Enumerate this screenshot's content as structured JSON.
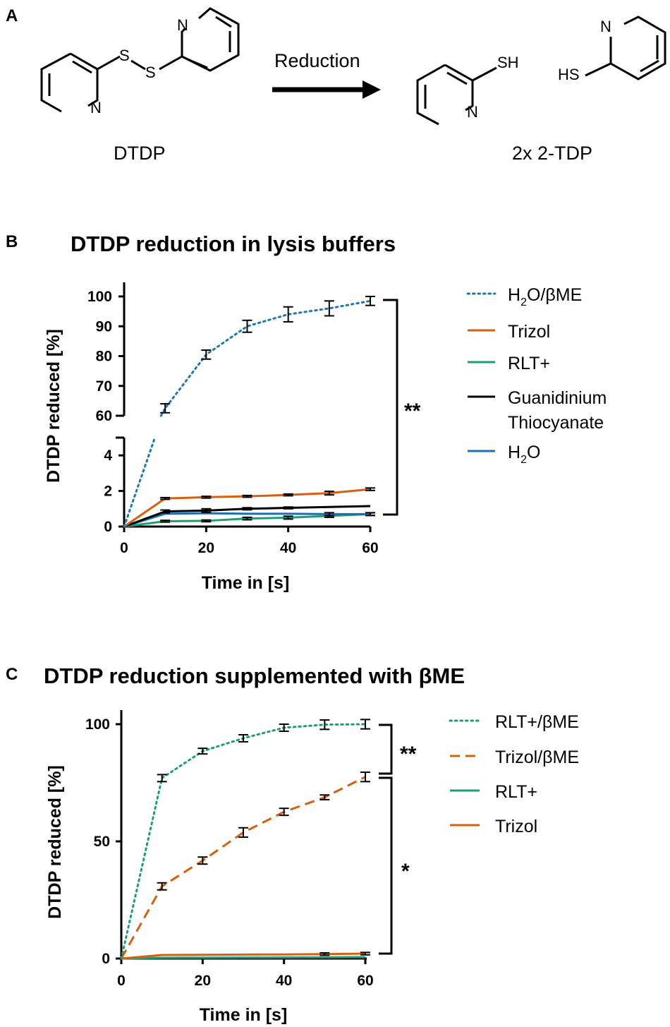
{
  "panel_a": {
    "letter": "A",
    "reactant": "DTDP",
    "arrow_label": "Reduction",
    "product": "2x 2-TDP",
    "atoms": {
      "s": "S",
      "n": "N",
      "sh": "SH",
      "hs": "HS"
    }
  },
  "chart_data": [
    {
      "panel": "B",
      "type": "line",
      "title": "DTDP reduction in lysis buffers",
      "xlabel": "Time in [s]",
      "ylabel": "DTDP reduced [%]",
      "xlim": [
        0,
        60
      ],
      "ylim_lower": [
        0,
        5
      ],
      "ylim_upper": [
        60,
        100
      ],
      "x_ticks": [
        "0",
        "20",
        "40",
        "60"
      ],
      "y_ticks_lower": [
        "0",
        "2",
        "4"
      ],
      "y_ticks_upper": [
        "60",
        "70",
        "80",
        "90",
        "100"
      ],
      "x": [
        0,
        10,
        20,
        30,
        40,
        50,
        60
      ],
      "series": [
        {
          "name": "H2O/βME",
          "color": "#1f77b4",
          "dash": "dotted",
          "values": [
            0,
            62.5,
            80.5,
            90,
            94,
            96,
            98.5
          ],
          "errors": [
            0,
            1.5,
            1.5,
            2,
            2.5,
            2.5,
            1.5
          ]
        },
        {
          "name": "Trizol",
          "color": "#d95f0e",
          "dash": "solid",
          "values": [
            0,
            1.58,
            1.65,
            1.7,
            1.78,
            1.88,
            2.1
          ],
          "errors": [
            0,
            0.05,
            0.05,
            0.05,
            0.05,
            0.1,
            0.07
          ]
        },
        {
          "name": "RLT+",
          "color": "#1b9e77",
          "dash": "solid",
          "values": [
            0,
            0.3,
            0.32,
            0.45,
            0.5,
            0.6,
            0.7
          ],
          "errors": [
            0,
            0.05,
            0.05,
            0.07,
            0.08,
            0.08,
            0.07
          ]
        },
        {
          "name": "Guanidinium Thiocyanate",
          "color": "#000000",
          "dash": "solid",
          "values": [
            0,
            0.85,
            0.9,
            1.0,
            1.05,
            1.1,
            1.15
          ],
          "errors": [
            0,
            0.08,
            0.1,
            0.06,
            0.05,
            0,
            0
          ]
        },
        {
          "name": "H2O",
          "color": "#1f6fb0",
          "dash": "solid",
          "values": [
            0,
            0.72,
            0.75,
            0.72,
            0.72,
            0.7,
            0.7
          ],
          "errors": [
            0,
            0,
            0,
            0,
            0,
            0.08,
            0.08
          ]
        }
      ],
      "legend": [
        {
          "main": "H",
          "sub": "2",
          "rest": "O/βME"
        },
        {
          "main": "Trizol"
        },
        {
          "main": "RLT+"
        },
        {
          "main": "Guanidinium",
          "line2": "Thiocyanate"
        },
        {
          "main": "H",
          "sub": "2",
          "rest": "O"
        }
      ],
      "significance": [
        {
          "label": "**"
        }
      ]
    },
    {
      "panel": "C",
      "type": "line",
      "title": "DTDP reduction supplemented with βME",
      "xlabel": "Time in [s]",
      "ylabel": "DTDP reduced [%]",
      "xlim": [
        0,
        60
      ],
      "ylim": [
        0,
        100
      ],
      "x_ticks": [
        "0",
        "20",
        "40",
        "60"
      ],
      "y_ticks": [
        "0",
        "50",
        "100"
      ],
      "x": [
        0,
        10,
        20,
        30,
        40,
        50,
        60
      ],
      "series": [
        {
          "name": "RLT+/βME",
          "color": "#1b9e77",
          "dash": "dotted",
          "values": [
            0,
            77,
            88.5,
            94,
            98.5,
            99.8,
            100
          ],
          "errors": [
            0,
            1.5,
            1.2,
            1.5,
            1.5,
            2,
            2
          ]
        },
        {
          "name": "Trizol/βME",
          "color": "#d95f0e",
          "dash": "dashed",
          "values": [
            0,
            30.8,
            41.8,
            53.8,
            62.6,
            68.8,
            77.5
          ],
          "errors": [
            0,
            1.5,
            1.5,
            2,
            1.5,
            1,
            2
          ]
        },
        {
          "name": "RLT+",
          "color": "#1b9e77",
          "dash": "solid",
          "values": [
            0,
            0.3,
            0.35,
            0.4,
            0.45,
            0.5,
            0.6
          ],
          "errors": [
            0,
            0,
            0,
            0,
            0,
            0,
            0
          ]
        },
        {
          "name": "Trizol",
          "color": "#d95f0e",
          "dash": "solid",
          "values": [
            0,
            1.5,
            1.6,
            1.7,
            1.75,
            1.9,
            2.1
          ],
          "errors": [
            0,
            0,
            0,
            0,
            0,
            0.5,
            0.5
          ]
        }
      ],
      "legend": [
        {
          "main": "RLT+/βME"
        },
        {
          "main": "Trizol/βME"
        },
        {
          "main": "RLT+"
        },
        {
          "main": "Trizol"
        }
      ],
      "significance": [
        {
          "label": "**"
        },
        {
          "label": "*"
        }
      ]
    }
  ]
}
